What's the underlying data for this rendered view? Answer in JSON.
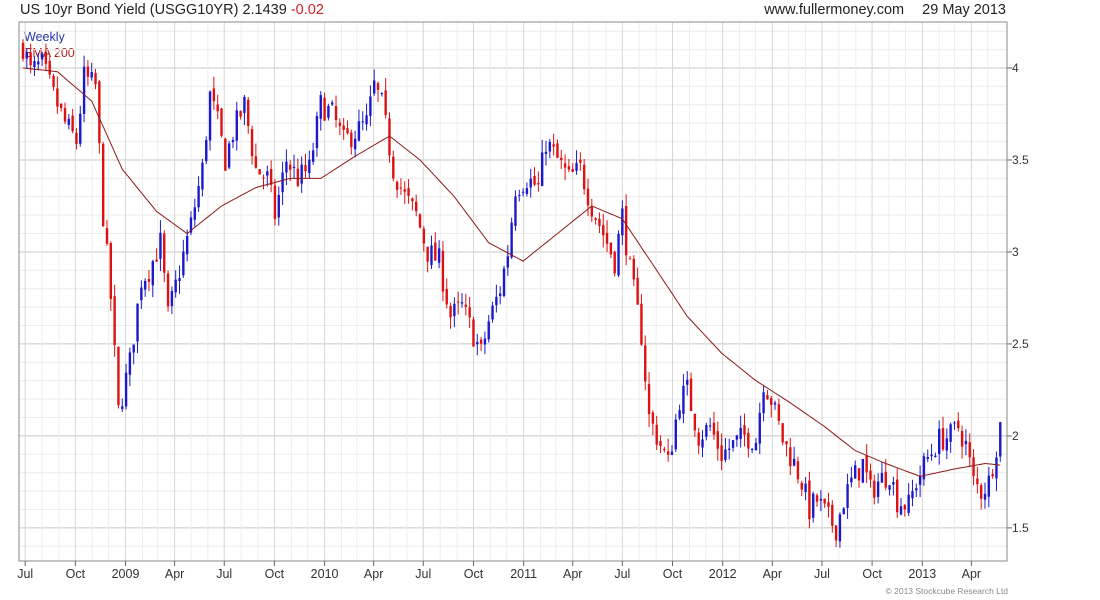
{
  "header": {
    "title": "US 10yr Bond Yield (USGG10YR)",
    "last_value": "2.1439",
    "change": "-0.02",
    "site": "www.fullermoney.com",
    "date": "29 May 2013"
  },
  "legend": {
    "weekly": "Weekly",
    "ema": "EMA 200"
  },
  "copyright": "© 2013 Stockcube Research Ltd",
  "colors": {
    "up": "#1a1acc",
    "down": "#dd1111",
    "ema": "#8b1a1a",
    "grid": "#dcdcdc",
    "frame": "#888888"
  },
  "chart_data": {
    "type": "candlestick",
    "ylim": [
      1.32,
      4.25
    ],
    "y_ticks": [
      1.5,
      2,
      2.5,
      3,
      3.5,
      4
    ],
    "y_tick_labels": [
      "1.5",
      "2",
      "2.5",
      "3",
      "3.5",
      "4"
    ],
    "x_start": "2008-06-27",
    "x_end": "2013-05-29",
    "x_ticks": [
      {
        "date": "2008-07-01",
        "label": "Jul"
      },
      {
        "date": "2008-10-01",
        "label": "Oct"
      },
      {
        "date": "2009-01-01",
        "label": "2009"
      },
      {
        "date": "2009-04-01",
        "label": "Apr"
      },
      {
        "date": "2009-07-01",
        "label": "Jul"
      },
      {
        "date": "2009-10-01",
        "label": "Oct"
      },
      {
        "date": "2010-01-01",
        "label": "2010"
      },
      {
        "date": "2010-04-01",
        "label": "Apr"
      },
      {
        "date": "2010-07-01",
        "label": "Jul"
      },
      {
        "date": "2010-10-01",
        "label": "Oct"
      },
      {
        "date": "2011-01-01",
        "label": "2011"
      },
      {
        "date": "2011-04-01",
        "label": "Apr"
      },
      {
        "date": "2011-07-01",
        "label": "Jul"
      },
      {
        "date": "2011-10-01",
        "label": "Oct"
      },
      {
        "date": "2012-01-01",
        "label": "2012"
      },
      {
        "date": "2012-04-01",
        "label": "Apr"
      },
      {
        "date": "2012-07-01",
        "label": "Jul"
      },
      {
        "date": "2012-10-01",
        "label": "Oct"
      },
      {
        "date": "2013-01-01",
        "label": "2013"
      },
      {
        "date": "2013-04-01",
        "label": "Apr"
      }
    ],
    "close_anchors": [
      [
        "2008-06-27",
        4.12
      ],
      [
        "2008-07-11",
        3.98
      ],
      [
        "2008-08-01",
        4.02
      ],
      [
        "2008-08-22",
        3.85
      ],
      [
        "2008-09-12",
        3.7
      ],
      [
        "2008-10-03",
        3.6
      ],
      [
        "2008-10-17",
        3.95
      ],
      [
        "2008-11-07",
        3.9
      ],
      [
        "2008-11-21",
        3.2
      ],
      [
        "2008-12-05",
        2.75
      ],
      [
        "2008-12-19",
        2.13
      ],
      [
        "2009-01-09",
        2.4
      ],
      [
        "2009-01-30",
        2.85
      ],
      [
        "2009-02-13",
        2.9
      ],
      [
        "2009-03-06",
        3.05
      ],
      [
        "2009-03-20",
        2.65
      ],
      [
        "2009-04-10",
        2.9
      ],
      [
        "2009-05-01",
        3.15
      ],
      [
        "2009-05-22",
        3.45
      ],
      [
        "2009-06-05",
        3.85
      ],
      [
        "2009-06-19",
        3.7
      ],
      [
        "2009-07-03",
        3.5
      ],
      [
        "2009-07-17",
        3.65
      ],
      [
        "2009-08-07",
        3.8
      ],
      [
        "2009-08-28",
        3.45
      ],
      [
        "2009-09-18",
        3.4
      ],
      [
        "2009-10-02",
        3.2
      ],
      [
        "2009-10-23",
        3.5
      ],
      [
        "2009-11-13",
        3.4
      ],
      [
        "2009-12-04",
        3.45
      ],
      [
        "2009-12-25",
        3.8
      ],
      [
        "2010-01-15",
        3.75
      ],
      [
        "2010-02-05",
        3.6
      ],
      [
        "2010-02-26",
        3.65
      ],
      [
        "2010-03-19",
        3.7
      ],
      [
        "2010-04-02",
        3.9
      ],
      [
        "2010-04-16",
        3.8
      ],
      [
        "2010-05-07",
        3.45
      ],
      [
        "2010-05-28",
        3.3
      ],
      [
        "2010-06-18",
        3.2
      ],
      [
        "2010-07-09",
        3.0
      ],
      [
        "2010-07-30",
        2.95
      ],
      [
        "2010-08-20",
        2.65
      ],
      [
        "2010-09-10",
        2.7
      ],
      [
        "2010-10-01",
        2.55
      ],
      [
        "2010-10-15",
        2.45
      ],
      [
        "2010-10-29",
        2.62
      ],
      [
        "2010-11-19",
        2.8
      ],
      [
        "2010-12-03",
        3.0
      ],
      [
        "2010-12-17",
        3.35
      ],
      [
        "2011-01-07",
        3.4
      ],
      [
        "2011-01-28",
        3.35
      ],
      [
        "2011-02-11",
        3.6
      ],
      [
        "2011-03-04",
        3.5
      ],
      [
        "2011-03-25",
        3.4
      ],
      [
        "2011-04-15",
        3.45
      ],
      [
        "2011-05-06",
        3.25
      ],
      [
        "2011-05-27",
        3.1
      ],
      [
        "2011-06-17",
        2.95
      ],
      [
        "2011-07-01",
        3.2
      ],
      [
        "2011-07-15",
        2.9
      ],
      [
        "2011-08-05",
        2.55
      ],
      [
        "2011-08-19",
        2.1
      ],
      [
        "2011-09-09",
        1.95
      ],
      [
        "2011-09-23",
        1.85
      ],
      [
        "2011-10-14",
        2.2
      ],
      [
        "2011-10-28",
        2.25
      ],
      [
        "2011-11-18",
        2.0
      ],
      [
        "2011-12-09",
        2.05
      ],
      [
        "2011-12-30",
        1.9
      ],
      [
        "2012-01-20",
        1.95
      ],
      [
        "2012-02-10",
        2.0
      ],
      [
        "2012-03-02",
        1.98
      ],
      [
        "2012-03-16",
        2.3
      ],
      [
        "2012-03-30",
        2.2
      ],
      [
        "2012-04-20",
        1.98
      ],
      [
        "2012-05-11",
        1.85
      ],
      [
        "2012-05-25",
        1.75
      ],
      [
        "2012-06-08",
        1.6
      ],
      [
        "2012-06-22",
        1.65
      ],
      [
        "2012-07-13",
        1.55
      ],
      [
        "2012-07-27",
        1.5
      ],
      [
        "2012-08-10",
        1.65
      ],
      [
        "2012-08-24",
        1.75
      ],
      [
        "2012-09-14",
        1.85
      ],
      [
        "2012-09-28",
        1.7
      ],
      [
        "2012-10-12",
        1.75
      ],
      [
        "2012-11-02",
        1.8
      ],
      [
        "2012-11-16",
        1.65
      ],
      [
        "2012-12-07",
        1.62
      ],
      [
        "2012-12-21",
        1.75
      ],
      [
        "2013-01-11",
        1.88
      ],
      [
        "2013-02-01",
        1.98
      ],
      [
        "2013-02-22",
        2.0
      ],
      [
        "2013-03-08",
        2.05
      ],
      [
        "2013-03-22",
        1.95
      ],
      [
        "2013-04-05",
        1.75
      ],
      [
        "2013-04-19",
        1.7
      ],
      [
        "2013-05-03",
        1.75
      ],
      [
        "2013-05-17",
        1.95
      ],
      [
        "2013-05-29",
        2.14
      ]
    ],
    "ema_anchors": [
      [
        "2008-06-27",
        4.0
      ],
      [
        "2008-08-29",
        3.98
      ],
      [
        "2008-10-31",
        3.82
      ],
      [
        "2008-12-26",
        3.45
      ],
      [
        "2009-02-27",
        3.22
      ],
      [
        "2009-04-24",
        3.1
      ],
      [
        "2009-06-26",
        3.25
      ],
      [
        "2009-08-28",
        3.35
      ],
      [
        "2009-10-30",
        3.4
      ],
      [
        "2009-12-25",
        3.4
      ],
      [
        "2010-02-26",
        3.52
      ],
      [
        "2010-04-30",
        3.63
      ],
      [
        "2010-06-25",
        3.5
      ],
      [
        "2010-08-27",
        3.3
      ],
      [
        "2010-10-29",
        3.05
      ],
      [
        "2010-12-31",
        2.95
      ],
      [
        "2011-03-04",
        3.1
      ],
      [
        "2011-05-06",
        3.25
      ],
      [
        "2011-07-01",
        3.18
      ],
      [
        "2011-09-02",
        2.9
      ],
      [
        "2011-10-28",
        2.65
      ],
      [
        "2011-12-30",
        2.45
      ],
      [
        "2012-03-02",
        2.3
      ],
      [
        "2012-05-04",
        2.18
      ],
      [
        "2012-07-06",
        2.05
      ],
      [
        "2012-08-31",
        1.92
      ],
      [
        "2012-10-26",
        1.85
      ],
      [
        "2012-12-28",
        1.78
      ],
      [
        "2013-03-01",
        1.82
      ],
      [
        "2013-04-26",
        1.85
      ],
      [
        "2013-05-29",
        1.84
      ]
    ]
  }
}
